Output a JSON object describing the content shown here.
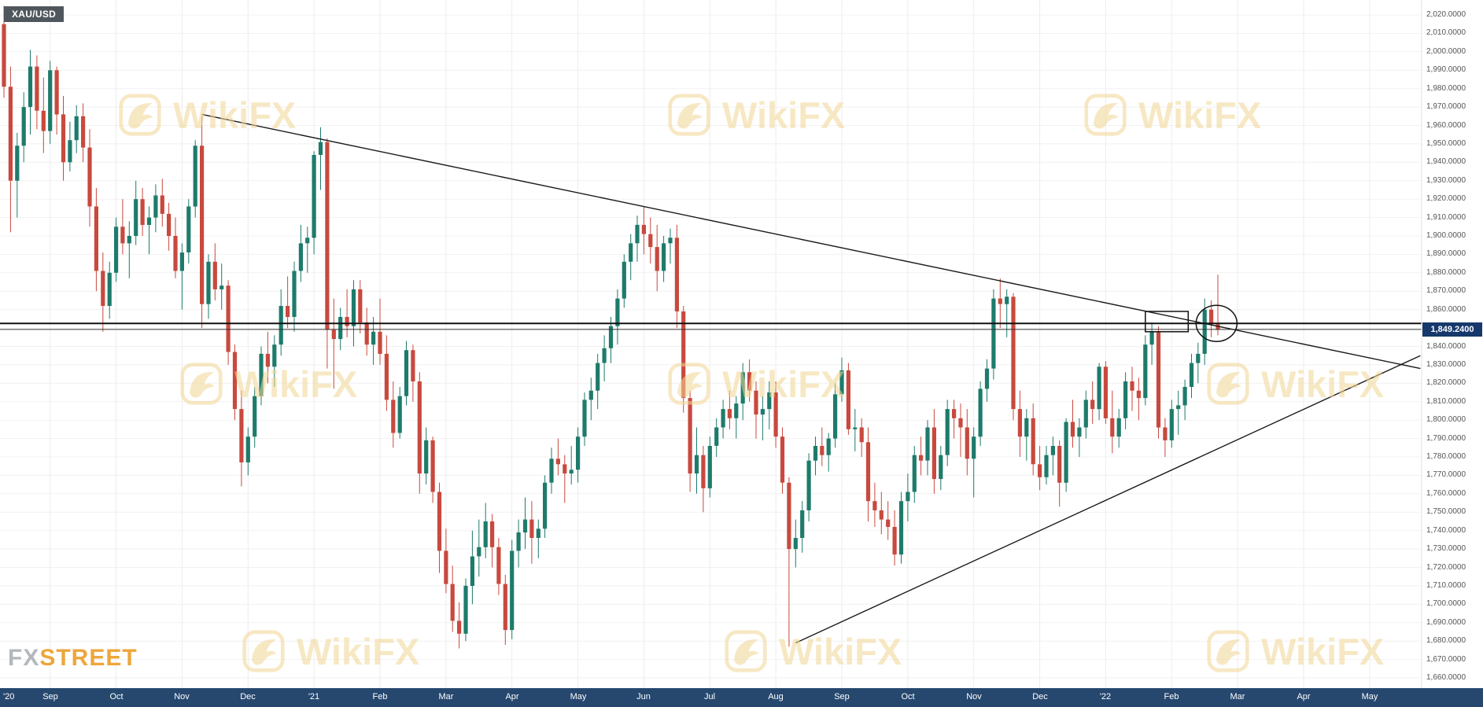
{
  "instrument": {
    "symbol": "XAU/USD"
  },
  "branding": {
    "watermark_text": "WikiFX",
    "footer_logo": {
      "fx": "FX",
      "street": "STREET"
    }
  },
  "colors": {
    "bull": "#1E7B6B",
    "bear": "#C8493E",
    "axis_bar_bg": "#26486F",
    "price_badge_bg": "#16386B",
    "watermark": "#F2D795",
    "annotation": "#1A1A1A"
  },
  "last_price": {
    "value": 1849.24,
    "label": "1,849.2400"
  },
  "chart_data": {
    "type": "candlestick",
    "title": "XAU/USD",
    "timeframe_hint": "daily candles, Aug 2020 - Feb 2022, symmetrical triangle pattern",
    "y_range": [
      1660,
      2020
    ],
    "y_step": 10,
    "grid": true,
    "y_tick_labels": [
      "2,020.0000",
      "2,010.0000",
      "2,000.0000",
      "1,990.0000",
      "1,980.0000",
      "1,970.0000",
      "1,960.0000",
      "1,950.0000",
      "1,940.0000",
      "1,930.0000",
      "1,920.0000",
      "1,910.0000",
      "1,900.0000",
      "1,890.0000",
      "1,880.0000",
      "1,870.0000",
      "1,860.0000",
      "1,850.0000",
      "1,840.0000",
      "1,830.0000",
      "1,820.0000",
      "1,810.0000",
      "1,800.0000",
      "1,790.0000",
      "1,780.0000",
      "1,770.0000",
      "1,760.0000",
      "1,750.0000",
      "1,740.0000",
      "1,730.0000",
      "1,720.0000",
      "1,710.0000",
      "1,700.0000",
      "1,690.0000",
      "1,680.0000",
      "1,670.0000",
      "1,660.0000"
    ],
    "x_tick_labels": [
      "'20",
      "Sep",
      "Oct",
      "Nov",
      "Dec",
      "'21",
      "Feb",
      "Mar",
      "Apr",
      "May",
      "Jun",
      "Jul",
      "Aug",
      "Sep",
      "Oct",
      "Nov",
      "Dec",
      "'22",
      "Feb",
      "Mar",
      "Apr",
      "May"
    ],
    "month_scale_note": "month 0 = Sep 2020 tick; 10 candles per month after a 7-candle Aug 2020 stub",
    "first_month_offset_candles": 7,
    "candles_per_month": 10,
    "candles": [
      [
        2015,
        2025,
        1975,
        1981
      ],
      [
        1981,
        1992,
        1902,
        1930
      ],
      [
        1930,
        1956,
        1910,
        1949
      ],
      [
        1949,
        1978,
        1940,
        1970
      ],
      [
        1970,
        2001,
        1955,
        1992
      ],
      [
        1992,
        1998,
        1958,
        1968
      ],
      [
        1968,
        1986,
        1945,
        1957
      ],
      [
        1957,
        1995,
        1950,
        1990
      ],
      [
        1990,
        1992,
        1955,
        1966
      ],
      [
        1966,
        1976,
        1930,
        1940
      ],
      [
        1940,
        1962,
        1935,
        1952
      ],
      [
        1952,
        1971,
        1945,
        1965
      ],
      [
        1965,
        1972,
        1940,
        1948
      ],
      [
        1948,
        1958,
        1905,
        1916
      ],
      [
        1916,
        1926,
        1870,
        1881
      ],
      [
        1881,
        1891,
        1848,
        1862
      ],
      [
        1862,
        1886,
        1855,
        1880
      ],
      [
        1880,
        1910,
        1875,
        1905
      ],
      [
        1905,
        1920,
        1890,
        1896
      ],
      [
        1896,
        1908,
        1877,
        1900
      ],
      [
        1900,
        1930,
        1895,
        1920
      ],
      [
        1920,
        1926,
        1900,
        1906
      ],
      [
        1906,
        1916,
        1890,
        1910
      ],
      [
        1910,
        1928,
        1902,
        1922
      ],
      [
        1922,
        1931,
        1905,
        1912
      ],
      [
        1912,
        1918,
        1892,
        1900
      ],
      [
        1900,
        1910,
        1877,
        1881
      ],
      [
        1881,
        1896,
        1860,
        1891
      ],
      [
        1891,
        1920,
        1885,
        1916
      ],
      [
        1916,
        1952,
        1910,
        1949
      ],
      [
        1949,
        1965,
        1850,
        1863
      ],
      [
        1863,
        1890,
        1855,
        1886
      ],
      [
        1886,
        1896,
        1865,
        1871
      ],
      [
        1871,
        1885,
        1860,
        1873
      ],
      [
        1873,
        1876,
        1830,
        1837
      ],
      [
        1837,
        1841,
        1800,
        1806
      ],
      [
        1806,
        1816,
        1764,
        1777
      ],
      [
        1777,
        1796,
        1770,
        1791
      ],
      [
        1791,
        1818,
        1785,
        1813
      ],
      [
        1813,
        1840,
        1808,
        1836
      ],
      [
        1836,
        1848,
        1820,
        1829
      ],
      [
        1829,
        1846,
        1818,
        1841
      ],
      [
        1841,
        1871,
        1835,
        1862
      ],
      [
        1862,
        1878,
        1850,
        1856
      ],
      [
        1856,
        1886,
        1848,
        1881
      ],
      [
        1881,
        1906,
        1875,
        1896
      ],
      [
        1896,
        1905,
        1880,
        1899
      ],
      [
        1899,
        1946,
        1890,
        1944
      ],
      [
        1944,
        1959,
        1925,
        1951
      ],
      [
        1951,
        1953,
        1828,
        1849
      ],
      [
        1849,
        1866,
        1817,
        1844
      ],
      [
        1844,
        1861,
        1838,
        1856
      ],
      [
        1856,
        1871,
        1845,
        1851
      ],
      [
        1851,
        1876,
        1840,
        1871
      ],
      [
        1871,
        1876,
        1847,
        1853
      ],
      [
        1853,
        1861,
        1835,
        1841
      ],
      [
        1841,
        1856,
        1830,
        1848
      ],
      [
        1848,
        1866,
        1830,
        1836
      ],
      [
        1836,
        1846,
        1805,
        1811
      ],
      [
        1811,
        1821,
        1785,
        1793
      ],
      [
        1793,
        1818,
        1790,
        1813
      ],
      [
        1813,
        1843,
        1808,
        1838
      ],
      [
        1838,
        1841,
        1810,
        1821
      ],
      [
        1821,
        1826,
        1760,
        1771
      ],
      [
        1771,
        1796,
        1765,
        1789
      ],
      [
        1789,
        1791,
        1755,
        1761
      ],
      [
        1761,
        1766,
        1717,
        1729
      ],
      [
        1729,
        1741,
        1706,
        1711
      ],
      [
        1711,
        1721,
        1685,
        1691
      ],
      [
        1691,
        1701,
        1676,
        1684
      ],
      [
        1684,
        1714,
        1680,
        1710
      ],
      [
        1710,
        1740,
        1700,
        1726
      ],
      [
        1726,
        1746,
        1715,
        1731
      ],
      [
        1731,
        1755,
        1725,
        1745
      ],
      [
        1745,
        1749,
        1720,
        1731
      ],
      [
        1731,
        1736,
        1705,
        1711
      ],
      [
        1711,
        1716,
        1678,
        1686
      ],
      [
        1686,
        1735,
        1681,
        1729
      ],
      [
        1729,
        1746,
        1720,
        1739
      ],
      [
        1739,
        1758,
        1730,
        1746
      ],
      [
        1746,
        1756,
        1722,
        1736
      ],
      [
        1736,
        1746,
        1725,
        1741
      ],
      [
        1741,
        1770,
        1736,
        1766
      ],
      [
        1766,
        1785,
        1760,
        1779
      ],
      [
        1779,
        1790,
        1770,
        1776
      ],
      [
        1776,
        1781,
        1755,
        1771
      ],
      [
        1771,
        1786,
        1765,
        1773
      ],
      [
        1773,
        1796,
        1766,
        1791
      ],
      [
        1791,
        1815,
        1786,
        1811
      ],
      [
        1811,
        1823,
        1800,
        1816
      ],
      [
        1816,
        1836,
        1806,
        1831
      ],
      [
        1831,
        1846,
        1821,
        1839
      ],
      [
        1839,
        1856,
        1831,
        1851
      ],
      [
        1851,
        1871,
        1841,
        1866
      ],
      [
        1866,
        1890,
        1861,
        1886
      ],
      [
        1886,
        1901,
        1876,
        1896
      ],
      [
        1896,
        1911,
        1886,
        1906
      ],
      [
        1906,
        1916,
        1890,
        1901
      ],
      [
        1901,
        1910,
        1885,
        1894
      ],
      [
        1894,
        1906,
        1870,
        1881
      ],
      [
        1881,
        1900,
        1875,
        1896
      ],
      [
        1896,
        1904,
        1885,
        1899
      ],
      [
        1899,
        1906,
        1850,
        1859
      ],
      [
        1859,
        1862,
        1804,
        1812
      ],
      [
        1812,
        1816,
        1761,
        1771
      ],
      [
        1771,
        1796,
        1760,
        1781
      ],
      [
        1781,
        1786,
        1750,
        1763
      ],
      [
        1763,
        1791,
        1758,
        1786
      ],
      [
        1786,
        1801,
        1780,
        1796
      ],
      [
        1796,
        1811,
        1790,
        1806
      ],
      [
        1806,
        1816,
        1795,
        1801
      ],
      [
        1801,
        1813,
        1790,
        1809
      ],
      [
        1809,
        1831,
        1800,
        1826
      ],
      [
        1826,
        1833,
        1810,
        1816
      ],
      [
        1816,
        1821,
        1790,
        1803
      ],
      [
        1803,
        1813,
        1789,
        1806
      ],
      [
        1806,
        1821,
        1795,
        1815
      ],
      [
        1815,
        1821,
        1785,
        1791
      ],
      [
        1791,
        1796,
        1760,
        1766
      ],
      [
        1766,
        1769,
        1677,
        1730
      ],
      [
        1730,
        1746,
        1720,
        1736
      ],
      [
        1736,
        1756,
        1728,
        1751
      ],
      [
        1751,
        1782,
        1745,
        1778
      ],
      [
        1778,
        1791,
        1770,
        1786
      ],
      [
        1786,
        1796,
        1775,
        1781
      ],
      [
        1781,
        1793,
        1772,
        1790
      ],
      [
        1790,
        1820,
        1785,
        1814
      ],
      [
        1814,
        1834,
        1810,
        1827
      ],
      [
        1827,
        1831,
        1792,
        1795
      ],
      [
        1795,
        1806,
        1783,
        1796
      ],
      [
        1796,
        1801,
        1780,
        1788
      ],
      [
        1788,
        1796,
        1745,
        1756
      ],
      [
        1756,
        1766,
        1742,
        1751
      ],
      [
        1751,
        1761,
        1738,
        1746
      ],
      [
        1746,
        1756,
        1735,
        1742
      ],
      [
        1742,
        1751,
        1721,
        1727
      ],
      [
        1727,
        1761,
        1722,
        1756
      ],
      [
        1756,
        1771,
        1745,
        1761
      ],
      [
        1761,
        1786,
        1755,
        1781
      ],
      [
        1781,
        1791,
        1770,
        1778
      ],
      [
        1778,
        1800,
        1770,
        1796
      ],
      [
        1796,
        1806,
        1760,
        1768
      ],
      [
        1768,
        1786,
        1762,
        1781
      ],
      [
        1781,
        1811,
        1775,
        1806
      ],
      [
        1806,
        1811,
        1790,
        1801
      ],
      [
        1801,
        1809,
        1780,
        1796
      ],
      [
        1796,
        1806,
        1770,
        1779
      ],
      [
        1779,
        1796,
        1758,
        1791
      ],
      [
        1791,
        1821,
        1786,
        1817
      ],
      [
        1817,
        1833,
        1810,
        1828
      ],
      [
        1828,
        1871,
        1822,
        1866
      ],
      [
        1866,
        1877,
        1850,
        1863
      ],
      [
        1863,
        1871,
        1845,
        1867
      ],
      [
        1867,
        1869,
        1800,
        1806
      ],
      [
        1806,
        1816,
        1780,
        1791
      ],
      [
        1791,
        1806,
        1778,
        1801
      ],
      [
        1801,
        1809,
        1770,
        1776
      ],
      [
        1776,
        1786,
        1762,
        1769
      ],
      [
        1769,
        1786,
        1765,
        1781
      ],
      [
        1781,
        1791,
        1770,
        1786
      ],
      [
        1786,
        1789,
        1753,
        1766
      ],
      [
        1766,
        1801,
        1761,
        1799
      ],
      [
        1799,
        1811,
        1785,
        1791
      ],
      [
        1791,
        1801,
        1780,
        1796
      ],
      [
        1796,
        1816,
        1790,
        1811
      ],
      [
        1811,
        1821,
        1798,
        1806
      ],
      [
        1806,
        1831,
        1800,
        1829
      ],
      [
        1829,
        1832,
        1798,
        1801
      ],
      [
        1801,
        1816,
        1782,
        1791
      ],
      [
        1791,
        1806,
        1785,
        1801
      ],
      [
        1801,
        1826,
        1795,
        1821
      ],
      [
        1821,
        1829,
        1805,
        1816
      ],
      [
        1816,
        1823,
        1800,
        1812
      ],
      [
        1812,
        1846,
        1808,
        1841
      ],
      [
        1841,
        1853,
        1830,
        1848
      ],
      [
        1848,
        1851,
        1790,
        1796
      ],
      [
        1796,
        1801,
        1780,
        1789
      ],
      [
        1789,
        1811,
        1785,
        1806
      ],
      [
        1806,
        1816,
        1792,
        1808
      ],
      [
        1808,
        1822,
        1800,
        1818
      ],
      [
        1818,
        1836,
        1812,
        1831
      ],
      [
        1831,
        1842,
        1820,
        1836
      ],
      [
        1836,
        1866,
        1830,
        1860
      ],
      [
        1860,
        1865,
        1845,
        1852
      ],
      [
        1852,
        1879,
        1846,
        1849
      ]
    ],
    "annotations": {
      "horizontal_line_price": 1852.5,
      "last_price_line": 1849.24,
      "trendlines": [
        {
          "name": "descending-resistance",
          "from": {
            "month": 2.3,
            "price": 1966
          },
          "to": {
            "month": 20.77,
            "price": 1828
          }
        },
        {
          "name": "ascending-support",
          "from": {
            "month": 11.3,
            "price": 1679
          },
          "to": {
            "month": 20.77,
            "price": 1835
          }
        }
      ],
      "rectangle": {
        "month_from": 16.6,
        "month_to": 17.25,
        "price_low": 1848,
        "price_high": 1859
      },
      "ellipse": {
        "month": 17.68,
        "price": 1852.5,
        "radius_x_px": 26,
        "radius_y_px": 23
      }
    }
  }
}
